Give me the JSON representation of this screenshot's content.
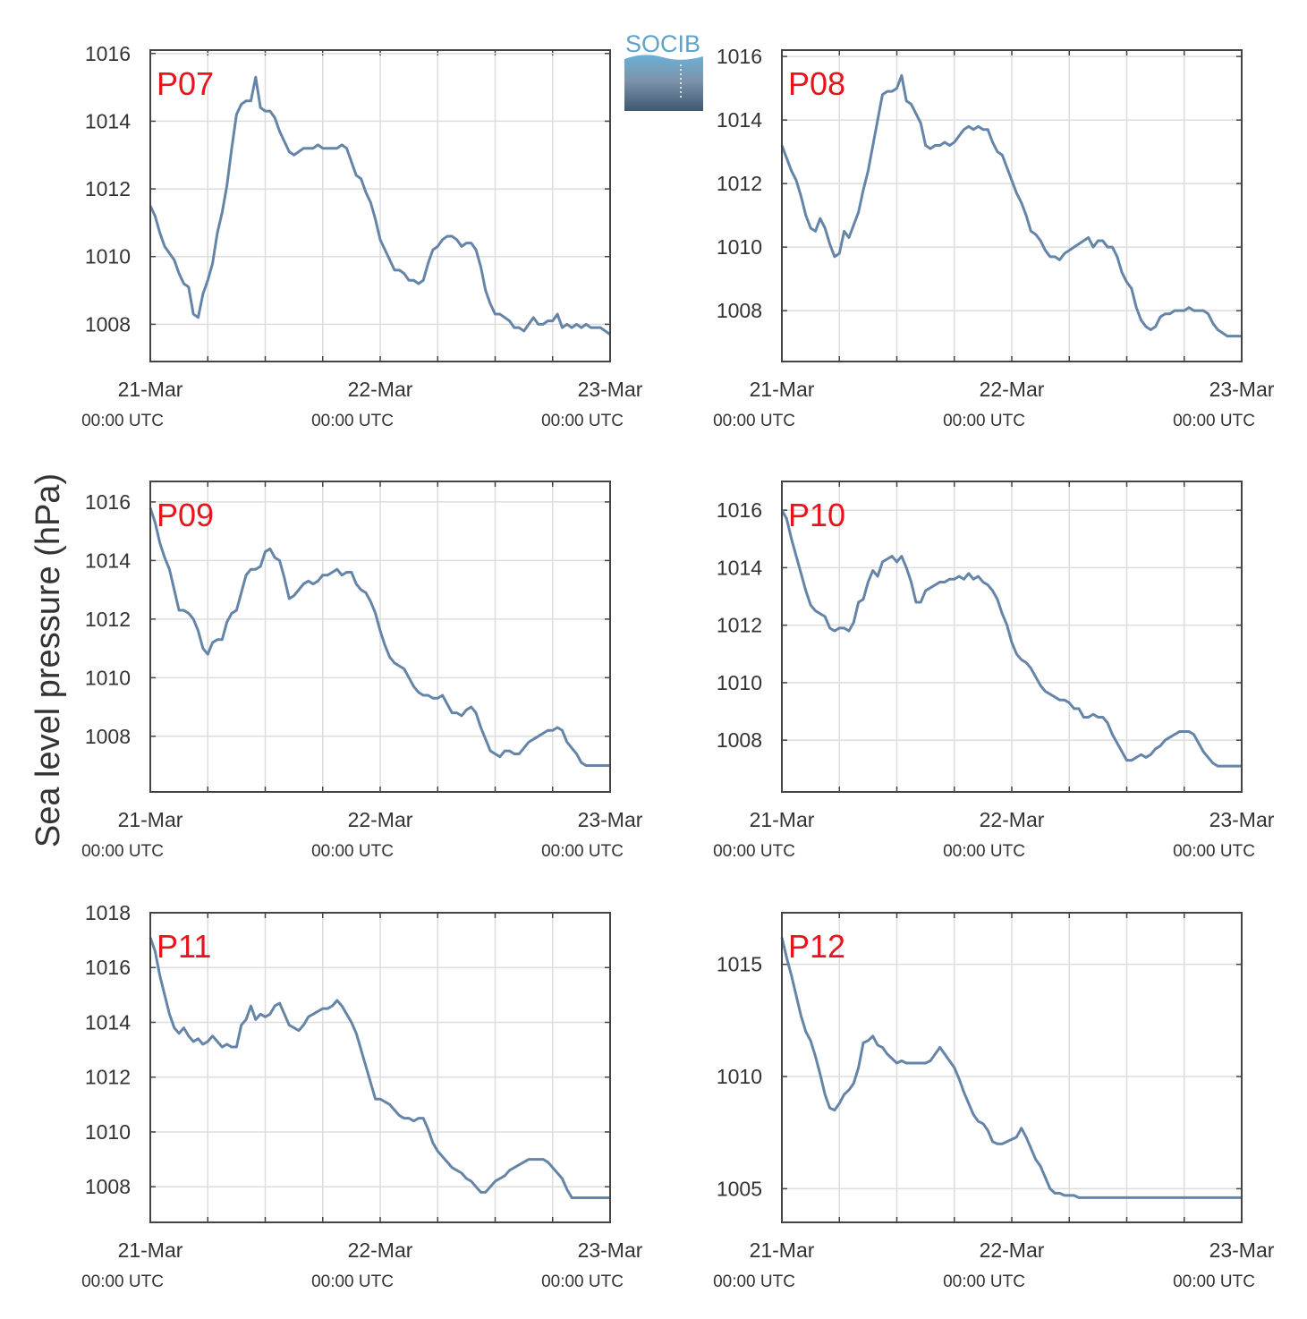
{
  "ylabel": "Sea level pressure (hPa)",
  "logo": {
    "text": "SOCIB",
    "top_color": "#6ab0d6",
    "bottom_color": "#3f5872"
  },
  "colors": {
    "line": "#6585a8",
    "grid": "#dddddd",
    "axis": "#444444",
    "panel_label": "#e8141c"
  },
  "x_ticks": [
    {
      "date": "21-Mar",
      "time": "00:00 UTC"
    },
    {
      "date": "22-Mar",
      "time": "00:00 UTC"
    },
    {
      "date": "23-Mar",
      "time": "00:00 UTC"
    }
  ],
  "chart_data": [
    {
      "type": "line",
      "name": "P07",
      "xlim": [
        0,
        48
      ],
      "ylim": [
        1006.9,
        1016.1
      ],
      "yticks": [
        1008,
        1010,
        1012,
        1014,
        1016
      ],
      "x": [
        0,
        0.5,
        1,
        1.5,
        2,
        2.5,
        3,
        3.5,
        4,
        4.5,
        5,
        5.5,
        6,
        6.5,
        7,
        7.5,
        8,
        8.5,
        9,
        9.5,
        10,
        10.5,
        11,
        11.5,
        12,
        12.5,
        13,
        13.5,
        14,
        14.5,
        15,
        15.5,
        16,
        16.5,
        17,
        17.5,
        18,
        18.5,
        19,
        19.5,
        20,
        20.5,
        21,
        21.5,
        22,
        22.5,
        23,
        23.5,
        24,
        24.5,
        25,
        25.5,
        26,
        26.5,
        27,
        27.5,
        28,
        28.5,
        29,
        29.5,
        30,
        30.5,
        31,
        31.5,
        32,
        32.5,
        33,
        33.5,
        34,
        34.5,
        35,
        35.5,
        36,
        36.5,
        37,
        37.5,
        38,
        38.5,
        39,
        39.5,
        40,
        40.5,
        41,
        41.5,
        42,
        42.5,
        43,
        43.5,
        44,
        44.5,
        45,
        45.5,
        46,
        46.5,
        47,
        47.5,
        48
      ],
      "y": [
        1011.5,
        1011.2,
        1010.7,
        1010.3,
        1010.1,
        1009.9,
        1009.5,
        1009.2,
        1009.1,
        1008.3,
        1008.2,
        1008.9,
        1009.3,
        1009.8,
        1010.7,
        1011.3,
        1012.1,
        1013.2,
        1014.2,
        1014.5,
        1014.6,
        1014.6,
        1015.3,
        1014.4,
        1014.3,
        1014.3,
        1014.1,
        1013.7,
        1013.4,
        1013.1,
        1013.0,
        1013.1,
        1013.2,
        1013.2,
        1013.2,
        1013.3,
        1013.2,
        1013.2,
        1013.2,
        1013.2,
        1013.3,
        1013.2,
        1012.8,
        1012.4,
        1012.3,
        1011.9,
        1011.6,
        1011.1,
        1010.5,
        1010.2,
        1009.9,
        1009.6,
        1009.6,
        1009.5,
        1009.3,
        1009.3,
        1009.2,
        1009.3,
        1009.8,
        1010.2,
        1010.3,
        1010.5,
        1010.6,
        1010.6,
        1010.5,
        1010.3,
        1010.4,
        1010.4,
        1010.2,
        1009.7,
        1009.0,
        1008.6,
        1008.3,
        1008.3,
        1008.2,
        1008.1,
        1007.9,
        1007.9,
        1007.8,
        1008.0,
        1008.2,
        1008.0,
        1008.0,
        1008.1,
        1008.1,
        1008.3,
        1007.9,
        1008.0,
        1007.9,
        1008.0,
        1007.9,
        1008.0,
        1007.9,
        1007.9,
        1007.9,
        1007.8,
        1007.7
      ]
    },
    {
      "type": "line",
      "name": "P08",
      "xlim": [
        0,
        48
      ],
      "ylim": [
        1006.4,
        1016.2
      ],
      "yticks": [
        1008,
        1010,
        1012,
        1014,
        1016
      ],
      "x": [
        0,
        0.5,
        1,
        1.5,
        2,
        2.5,
        3,
        3.5,
        4,
        4.5,
        5,
        5.5,
        6,
        6.5,
        7,
        7.5,
        8,
        8.5,
        9,
        9.5,
        10,
        10.5,
        11,
        11.5,
        12,
        12.5,
        13,
        13.5,
        14,
        14.5,
        15,
        15.5,
        16,
        16.5,
        17,
        17.5,
        18,
        18.5,
        19,
        19.5,
        20,
        20.5,
        21,
        21.5,
        22,
        22.5,
        23,
        23.5,
        24,
        24.5,
        25,
        25.5,
        26,
        26.5,
        27,
        27.5,
        28,
        28.5,
        29,
        29.5,
        30,
        30.5,
        31,
        31.5,
        32,
        32.5,
        33,
        33.5,
        34,
        34.5,
        35,
        35.5,
        36,
        36.5,
        37,
        37.5,
        38,
        38.5,
        39,
        39.5,
        40,
        40.5,
        41,
        41.5,
        42,
        42.5,
        43,
        43.5,
        44,
        44.5,
        45,
        45.5,
        46,
        46.5,
        47,
        47.5,
        48
      ],
      "y": [
        1013.2,
        1012.8,
        1012.4,
        1012.1,
        1011.6,
        1011.0,
        1010.6,
        1010.5,
        1010.9,
        1010.6,
        1010.1,
        1009.7,
        1009.8,
        1010.5,
        1010.3,
        1010.7,
        1011.1,
        1011.8,
        1012.4,
        1013.2,
        1014.0,
        1014.8,
        1014.9,
        1014.9,
        1015.0,
        1015.4,
        1014.6,
        1014.5,
        1014.2,
        1013.9,
        1013.2,
        1013.1,
        1013.2,
        1013.2,
        1013.3,
        1013.2,
        1013.3,
        1013.5,
        1013.7,
        1013.8,
        1013.7,
        1013.8,
        1013.7,
        1013.7,
        1013.3,
        1013.0,
        1012.9,
        1012.5,
        1012.1,
        1011.7,
        1011.4,
        1011.0,
        1010.5,
        1010.4,
        1010.2,
        1009.9,
        1009.7,
        1009.7,
        1009.6,
        1009.8,
        1009.9,
        1010.0,
        1010.1,
        1010.2,
        1010.3,
        1010.0,
        1010.2,
        1010.2,
        1010.0,
        1010.0,
        1009.7,
        1009.2,
        1008.9,
        1008.7,
        1008.1,
        1007.7,
        1007.5,
        1007.4,
        1007.5,
        1007.8,
        1007.9,
        1007.9,
        1008.0,
        1008.0,
        1008.0,
        1008.1,
        1008.0,
        1008.0,
        1008.0,
        1007.9,
        1007.6,
        1007.4,
        1007.3,
        1007.2,
        1007.2,
        1007.2,
        1007.2
      ]
    },
    {
      "type": "line",
      "name": "P09",
      "xlim": [
        0,
        48
      ],
      "ylim": [
        1006.1,
        1016.7
      ],
      "yticks": [
        1008,
        1010,
        1012,
        1014,
        1016
      ],
      "x": [
        0,
        0.5,
        1,
        1.5,
        2,
        2.5,
        3,
        3.5,
        4,
        4.5,
        5,
        5.5,
        6,
        6.5,
        7,
        7.5,
        8,
        8.5,
        9,
        9.5,
        10,
        10.5,
        11,
        11.5,
        12,
        12.5,
        13,
        13.5,
        14,
        14.5,
        15,
        15.5,
        16,
        16.5,
        17,
        17.5,
        18,
        18.5,
        19,
        19.5,
        20,
        20.5,
        21,
        21.5,
        22,
        22.5,
        23,
        23.5,
        24,
        24.5,
        25,
        25.5,
        26,
        26.5,
        27,
        27.5,
        28,
        28.5,
        29,
        29.5,
        30,
        30.5,
        31,
        31.5,
        32,
        32.5,
        33,
        33.5,
        34,
        34.5,
        35,
        35.5,
        36,
        36.5,
        37,
        37.5,
        38,
        38.5,
        39,
        39.5,
        40,
        40.5,
        41,
        41.5,
        42,
        42.5,
        43,
        43.5,
        44,
        44.5,
        45,
        45.5,
        46,
        46.5,
        47,
        47.5,
        48
      ],
      "y": [
        1015.8,
        1015.3,
        1014.6,
        1014.1,
        1013.7,
        1013.0,
        1012.3,
        1012.3,
        1012.2,
        1012.0,
        1011.6,
        1011.0,
        1010.8,
        1011.2,
        1011.3,
        1011.3,
        1011.9,
        1012.2,
        1012.3,
        1012.9,
        1013.5,
        1013.7,
        1013.7,
        1013.8,
        1014.3,
        1014.4,
        1014.1,
        1014.0,
        1013.4,
        1012.7,
        1012.8,
        1013.0,
        1013.2,
        1013.3,
        1013.2,
        1013.3,
        1013.5,
        1013.5,
        1013.6,
        1013.7,
        1013.5,
        1013.6,
        1013.6,
        1013.2,
        1013.0,
        1012.9,
        1012.6,
        1012.2,
        1011.6,
        1011.1,
        1010.7,
        1010.5,
        1010.4,
        1010.3,
        1010.0,
        1009.7,
        1009.5,
        1009.4,
        1009.4,
        1009.3,
        1009.3,
        1009.4,
        1009.1,
        1008.8,
        1008.8,
        1008.7,
        1008.9,
        1009.0,
        1008.8,
        1008.3,
        1007.9,
        1007.5,
        1007.4,
        1007.3,
        1007.5,
        1007.5,
        1007.4,
        1007.4,
        1007.6,
        1007.8,
        1007.9,
        1008.0,
        1008.1,
        1008.2,
        1008.2,
        1008.3,
        1008.2,
        1007.8,
        1007.6,
        1007.4,
        1007.1,
        1007.0,
        1007.0,
        1007.0,
        1007.0,
        1007.0,
        1007.0
      ]
    },
    {
      "type": "line",
      "name": "P10",
      "xlim": [
        0,
        48
      ],
      "ylim": [
        1006.2,
        1017.0
      ],
      "yticks": [
        1008,
        1010,
        1012,
        1014,
        1016
      ],
      "x": [
        0,
        0.5,
        1,
        1.5,
        2,
        2.5,
        3,
        3.5,
        4,
        4.5,
        5,
        5.5,
        6,
        6.5,
        7,
        7.5,
        8,
        8.5,
        9,
        9.5,
        10,
        10.5,
        11,
        11.5,
        12,
        12.5,
        13,
        13.5,
        14,
        14.5,
        15,
        15.5,
        16,
        16.5,
        17,
        17.5,
        18,
        18.5,
        19,
        19.5,
        20,
        20.5,
        21,
        21.5,
        22,
        22.5,
        23,
        23.5,
        24,
        24.5,
        25,
        25.5,
        26,
        26.5,
        27,
        27.5,
        28,
        28.5,
        29,
        29.5,
        30,
        30.5,
        31,
        31.5,
        32,
        32.5,
        33,
        33.5,
        34,
        34.5,
        35,
        35.5,
        36,
        36.5,
        37,
        37.5,
        38,
        38.5,
        39,
        39.5,
        40,
        40.5,
        41,
        41.5,
        42,
        42.5,
        43,
        43.5,
        44,
        44.5,
        45,
        45.5,
        46,
        46.5,
        47,
        47.5,
        48
      ],
      "y": [
        1016.0,
        1015.7,
        1015.0,
        1014.4,
        1013.8,
        1013.2,
        1012.7,
        1012.5,
        1012.4,
        1012.3,
        1011.9,
        1011.8,
        1011.9,
        1011.9,
        1011.8,
        1012.1,
        1012.8,
        1012.9,
        1013.5,
        1013.9,
        1013.7,
        1014.2,
        1014.3,
        1014.4,
        1014.2,
        1014.4,
        1014.0,
        1013.5,
        1012.8,
        1012.8,
        1013.2,
        1013.3,
        1013.4,
        1013.5,
        1013.5,
        1013.6,
        1013.6,
        1013.7,
        1013.6,
        1013.8,
        1013.6,
        1013.7,
        1013.5,
        1013.4,
        1013.2,
        1012.9,
        1012.4,
        1012.0,
        1011.4,
        1011.0,
        1010.8,
        1010.7,
        1010.5,
        1010.2,
        1009.9,
        1009.7,
        1009.6,
        1009.5,
        1009.4,
        1009.4,
        1009.3,
        1009.1,
        1009.1,
        1008.8,
        1008.8,
        1008.9,
        1008.8,
        1008.8,
        1008.6,
        1008.2,
        1007.9,
        1007.6,
        1007.3,
        1007.3,
        1007.4,
        1007.5,
        1007.4,
        1007.5,
        1007.7,
        1007.8,
        1008.0,
        1008.1,
        1008.2,
        1008.3,
        1008.3,
        1008.3,
        1008.2,
        1007.9,
        1007.6,
        1007.4,
        1007.2,
        1007.1,
        1007.1,
        1007.1,
        1007.1,
        1007.1,
        1007.1
      ]
    },
    {
      "type": "line",
      "name": "P11",
      "xlim": [
        0,
        48
      ],
      "ylim": [
        1006.7,
        1018.0
      ],
      "yticks": [
        1008,
        1010,
        1012,
        1014,
        1016,
        1018
      ],
      "x": [
        0,
        0.5,
        1,
        1.5,
        2,
        2.5,
        3,
        3.5,
        4,
        4.5,
        5,
        5.5,
        6,
        6.5,
        7,
        7.5,
        8,
        8.5,
        9,
        9.5,
        10,
        10.5,
        11,
        11.5,
        12,
        12.5,
        13,
        13.5,
        14,
        14.5,
        15,
        15.5,
        16,
        16.5,
        17,
        17.5,
        18,
        18.5,
        19,
        19.5,
        20,
        20.5,
        21,
        21.5,
        22,
        22.5,
        23,
        23.5,
        24,
        24.5,
        25,
        25.5,
        26,
        26.5,
        27,
        27.5,
        28,
        28.5,
        29,
        29.5,
        30,
        30.5,
        31,
        31.5,
        32,
        32.5,
        33,
        33.5,
        34,
        34.5,
        35,
        35.5,
        36,
        36.5,
        37,
        37.5,
        38,
        38.5,
        39,
        39.5,
        40,
        40.5,
        41,
        41.5,
        42,
        42.5,
        43,
        43.5,
        44,
        44.5,
        45,
        45.5,
        46,
        46.5,
        47,
        47.5,
        48
      ],
      "y": [
        1017.1,
        1016.6,
        1015.7,
        1015.0,
        1014.3,
        1013.8,
        1013.6,
        1013.8,
        1013.5,
        1013.3,
        1013.4,
        1013.2,
        1013.3,
        1013.5,
        1013.3,
        1013.1,
        1013.2,
        1013.1,
        1013.1,
        1013.9,
        1014.1,
        1014.6,
        1014.1,
        1014.3,
        1014.2,
        1014.3,
        1014.6,
        1014.7,
        1014.3,
        1013.9,
        1013.8,
        1013.7,
        1013.9,
        1014.2,
        1014.3,
        1014.4,
        1014.5,
        1014.5,
        1014.6,
        1014.8,
        1014.6,
        1014.3,
        1014.0,
        1013.6,
        1013.0,
        1012.4,
        1011.8,
        1011.2,
        1011.2,
        1011.1,
        1011.0,
        1010.8,
        1010.6,
        1010.5,
        1010.5,
        1010.4,
        1010.5,
        1010.5,
        1010.1,
        1009.6,
        1009.3,
        1009.1,
        1008.9,
        1008.7,
        1008.6,
        1008.5,
        1008.3,
        1008.2,
        1008.0,
        1007.8,
        1007.8,
        1008.0,
        1008.2,
        1008.3,
        1008.4,
        1008.6,
        1008.7,
        1008.8,
        1008.9,
        1009.0,
        1009.0,
        1009.0,
        1009.0,
        1008.9,
        1008.7,
        1008.5,
        1008.3,
        1007.9,
        1007.6,
        1007.6,
        1007.6,
        1007.6,
        1007.6,
        1007.6,
        1007.6,
        1007.6,
        1007.6
      ]
    },
    {
      "type": "line",
      "name": "P12",
      "xlim": [
        0,
        48
      ],
      "ylim": [
        1003.5,
        1017.3
      ],
      "yticks": [
        1005,
        1010,
        1015
      ],
      "x": [
        0,
        0.5,
        1,
        1.5,
        2,
        2.5,
        3,
        3.5,
        4,
        4.5,
        5,
        5.5,
        6,
        6.5,
        7,
        7.5,
        8,
        8.5,
        9,
        9.5,
        10,
        10.5,
        11,
        11.5,
        12,
        12.5,
        13,
        13.5,
        14,
        14.5,
        15,
        15.5,
        16,
        16.5,
        17,
        17.5,
        18,
        18.5,
        19,
        19.5,
        20,
        20.5,
        21,
        21.5,
        22,
        22.5,
        23,
        23.5,
        24,
        24.5,
        25,
        25.5,
        26,
        26.5,
        27,
        27.5,
        28,
        28.5,
        29,
        29.5,
        30,
        30.5,
        31,
        31.5,
        32,
        32.5,
        33,
        33.5,
        34,
        34.5,
        35,
        35.5,
        36,
        36.5,
        37,
        37.5,
        38,
        38.5,
        39,
        39.5,
        40,
        40.5,
        41,
        41.5,
        42,
        42.5,
        43,
        43.5,
        44,
        44.5,
        45,
        45.5,
        46,
        46.5,
        47,
        47.5,
        48
      ],
      "y": [
        1016.2,
        1015.3,
        1014.5,
        1013.6,
        1012.7,
        1012.0,
        1011.6,
        1010.9,
        1010.1,
        1009.2,
        1008.6,
        1008.5,
        1008.8,
        1009.2,
        1009.4,
        1009.7,
        1010.4,
        1011.5,
        1011.6,
        1011.8,
        1011.4,
        1011.3,
        1011.0,
        1010.8,
        1010.6,
        1010.7,
        1010.6,
        1010.6,
        1010.6,
        1010.6,
        1010.6,
        1010.7,
        1011.0,
        1011.3,
        1011.0,
        1010.7,
        1010.4,
        1009.9,
        1009.3,
        1008.8,
        1008.3,
        1008.0,
        1007.9,
        1007.6,
        1007.1,
        1007.0,
        1007.0,
        1007.1,
        1007.2,
        1007.3,
        1007.7,
        1007.3,
        1006.8,
        1006.3,
        1006.0,
        1005.5,
        1005.0,
        1004.8,
        1004.8,
        1004.7,
        1004.7,
        1004.7,
        1004.6,
        1004.6,
        1004.6,
        1004.6,
        1004.6,
        1004.6,
        1004.6,
        1004.6,
        1004.6,
        1004.6,
        1004.6,
        1004.6,
        1004.6,
        1004.6,
        1004.6,
        1004.6,
        1004.6,
        1004.6,
        1004.6,
        1004.6,
        1004.6,
        1004.6,
        1004.6,
        1004.6,
        1004.6,
        1004.6,
        1004.6,
        1004.6,
        1004.6,
        1004.6,
        1004.6,
        1004.6,
        1004.6,
        1004.6,
        1004.6
      ]
    }
  ]
}
